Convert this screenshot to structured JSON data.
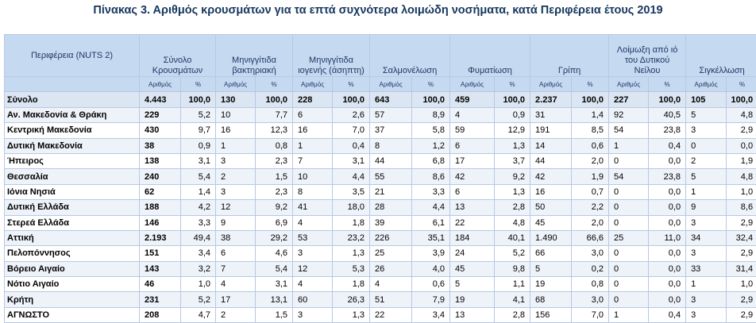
{
  "title": "Πίνακας 3. Αριθμός κρουσμάτων για τα επτά συχνότερα λοιμώδη νοσήματα, κατά Περιφέρεια έτους 2019",
  "header": {
    "region": "Περιφέρεια (NUTS 2)",
    "groups": [
      "Σύνολο Κρουσμάτων",
      "Μηνιγγίτιδα βακτηριακή",
      "Μηνιγγίτιδα ιογενής (άσηπτη)",
      "Σαλμονέλωση",
      "Φυματίωση",
      "Γρίπη",
      "Λοίμωξη από ιό του Δυτικού Νείλου",
      "Σιγκέλλωση"
    ],
    "count_label": "Αριθμός",
    "pct_label": "%"
  },
  "rows": [
    {
      "region": "Σύνολο",
      "v": [
        "4.443",
        "100,0",
        "130",
        "100,0",
        "228",
        "100,0",
        "643",
        "100,0",
        "459",
        "100,0",
        "2.237",
        "100,0",
        "227",
        "100,0",
        "105",
        "100,0"
      ]
    },
    {
      "region": "Αν. Μακεδονία & Θράκη",
      "v": [
        "229",
        "5,2",
        "10",
        "7,7",
        "6",
        "2,6",
        "57",
        "8,9",
        "4",
        "0,9",
        "31",
        "1,4",
        "92",
        "40,5",
        "5",
        "4,8"
      ]
    },
    {
      "region": "Κεντρική Μακεδονία",
      "v": [
        "430",
        "9,7",
        "16",
        "12,3",
        "16",
        "7,0",
        "37",
        "5,8",
        "59",
        "12,9",
        "191",
        "8,5",
        "54",
        "23,8",
        "3",
        "2,9"
      ]
    },
    {
      "region": "Δυτική Μακεδονία",
      "v": [
        "38",
        "0,9",
        "1",
        "0,8",
        "1",
        "0,4",
        "8",
        "1,2",
        "6",
        "1,3",
        "14",
        "0,6",
        "1",
        "0,4",
        "0",
        "0,0"
      ]
    },
    {
      "region": "Ήπειρος",
      "v": [
        "138",
        "3,1",
        "3",
        "2,3",
        "7",
        "3,1",
        "44",
        "6,8",
        "17",
        "3,7",
        "44",
        "2,0",
        "0",
        "0,0",
        "2",
        "1,9"
      ]
    },
    {
      "region": "Θεσσαλία",
      "v": [
        "240",
        "5,4",
        "2",
        "1,5",
        "10",
        "4,4",
        "55",
        "8,6",
        "42",
        "9,2",
        "42",
        "1,9",
        "54",
        "23,8",
        "5",
        "4,8"
      ]
    },
    {
      "region": "Ιόνια Νησιά",
      "v": [
        "62",
        "1,4",
        "3",
        "2,3",
        "8",
        "3,5",
        "21",
        "3,3",
        "6",
        "1,3",
        "16",
        "0,7",
        "0",
        "0,0",
        "1",
        "1,0"
      ]
    },
    {
      "region": "Δυτική Ελλάδα",
      "v": [
        "188",
        "4,2",
        "12",
        "9,2",
        "41",
        "18,0",
        "28",
        "4,4",
        "13",
        "2,8",
        "50",
        "2,2",
        "0",
        "0,0",
        "9",
        "8,6"
      ]
    },
    {
      "region": "Στερεά Ελλάδα",
      "v": [
        "146",
        "3,3",
        "9",
        "6,9",
        "4",
        "1,8",
        "39",
        "6,1",
        "22",
        "4,8",
        "45",
        "2,0",
        "0",
        "0,0",
        "3",
        "2,9"
      ]
    },
    {
      "region": "Αττική",
      "v": [
        "2.193",
        "49,4",
        "38",
        "29,2",
        "53",
        "23,2",
        "226",
        "35,1",
        "184",
        "40,1",
        "1.490",
        "66,6",
        "25",
        "11,0",
        "34",
        "32,4"
      ]
    },
    {
      "region": "Πελοπόννησος",
      "v": [
        "151",
        "3,4",
        "6",
        "4,6",
        "3",
        "1,3",
        "25",
        "3,9",
        "24",
        "5,2",
        "66",
        "3,0",
        "0",
        "0,0",
        "3",
        "2,9"
      ]
    },
    {
      "region": "Βόρειο Αιγαίο",
      "v": [
        "143",
        "3,2",
        "7",
        "5,4",
        "12",
        "5,3",
        "26",
        "4,0",
        "45",
        "9,8",
        "5",
        "0,2",
        "0",
        "0,0",
        "33",
        "31,4"
      ]
    },
    {
      "region": "Νότιο Αιγαίο",
      "v": [
        "46",
        "1,0",
        "4",
        "3,1",
        "4",
        "1,8",
        "4",
        "0,6",
        "5",
        "1,1",
        "19",
        "0,8",
        "0",
        "0,0",
        "1",
        "1,0"
      ]
    },
    {
      "region": "Κρήτη",
      "v": [
        "231",
        "5,2",
        "17",
        "13,1",
        "60",
        "26,3",
        "51",
        "7,9",
        "19",
        "4,1",
        "68",
        "3,0",
        "0",
        "0,0",
        "3",
        "2,9"
      ]
    },
    {
      "region": "ΑΓΝΩΣΤΟ",
      "v": [
        "208",
        "4,7",
        "2",
        "1,5",
        "3",
        "1,3",
        "22",
        "3,4",
        "13",
        "2,8",
        "156",
        "7,0",
        "1",
        "0,4",
        "3",
        "2,9"
      ]
    }
  ]
}
